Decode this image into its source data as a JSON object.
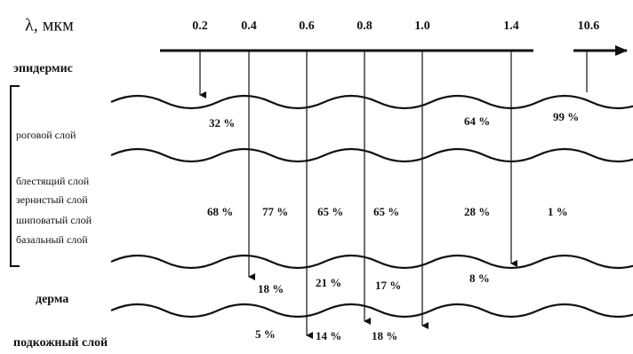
{
  "axis": {
    "label": "λ, мкм",
    "wavelengths": [
      "0.2",
      "0.4",
      "0.6",
      "0.8",
      "1.0",
      "1.4",
      "10.6"
    ]
  },
  "layers": {
    "epidermis": "эпидермис",
    "sublayers": [
      "роговой слой",
      "блестящий слой",
      "зернистый слой",
      "шиповатый слой",
      "базальный слой"
    ],
    "dermis": "дерма",
    "hypodermis": "подкожный слой"
  },
  "absorption": {
    "row1": [
      "32 %",
      "64 %",
      "99 %"
    ],
    "row2": [
      "68 %",
      "77 %",
      "65 %",
      "65 %",
      "28 %",
      "1 %"
    ],
    "row3": [
      "18 %",
      "21 %",
      "17 %",
      "8 %"
    ],
    "row4": [
      "5 %",
      "14 %",
      "18 %"
    ]
  }
}
